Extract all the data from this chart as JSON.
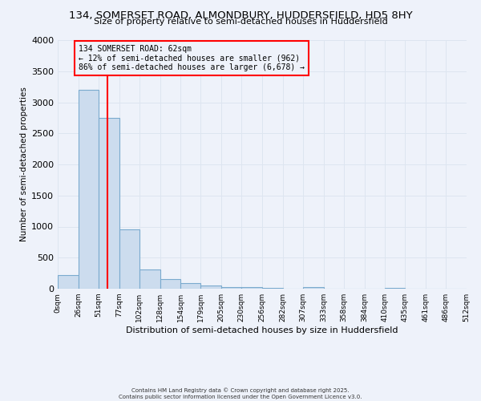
{
  "title": "134, SOMERSET ROAD, ALMONDBURY, HUDDERSFIELD, HD5 8HY",
  "subtitle": "Size of property relative to semi-detached houses in Huddersfield",
  "xlabel": "Distribution of semi-detached houses by size in Huddersfield",
  "ylabel": "Number of semi-detached properties",
  "bin_edges": [
    0,
    26,
    51,
    77,
    102,
    128,
    154,
    179,
    205,
    230,
    256,
    282,
    307,
    333,
    358,
    384,
    410,
    435,
    461,
    486,
    512
  ],
  "bin_labels": [
    "0sqm",
    "26sqm",
    "51sqm",
    "77sqm",
    "102sqm",
    "128sqm",
    "154sqm",
    "179sqm",
    "205sqm",
    "230sqm",
    "256sqm",
    "282sqm",
    "307sqm",
    "333sqm",
    "358sqm",
    "384sqm",
    "410sqm",
    "435sqm",
    "461sqm",
    "486sqm",
    "512sqm"
  ],
  "counts": [
    220,
    3200,
    2750,
    950,
    310,
    160,
    90,
    50,
    20,
    30,
    15,
    5,
    20,
    5,
    5,
    0,
    10,
    0,
    0,
    5
  ],
  "bar_facecolor": "#ccdcee",
  "bar_edgecolor": "#7aaace",
  "grid_color": "#dde5f0",
  "background_color": "#eef2fa",
  "property_line_x": 62,
  "property_line_color": "red",
  "annotation_title": "134 SOMERSET ROAD: 62sqm",
  "annotation_line1": "← 12% of semi-detached houses are smaller (962)",
  "annotation_line2": "86% of semi-detached houses are larger (6,678) →",
  "annotation_box_edgecolor": "red",
  "ylim": [
    0,
    4000
  ],
  "yticks": [
    0,
    500,
    1000,
    1500,
    2000,
    2500,
    3000,
    3500,
    4000
  ],
  "footer1": "Contains HM Land Registry data © Crown copyright and database right 2025.",
  "footer2": "Contains public sector information licensed under the Open Government Licence v3.0."
}
